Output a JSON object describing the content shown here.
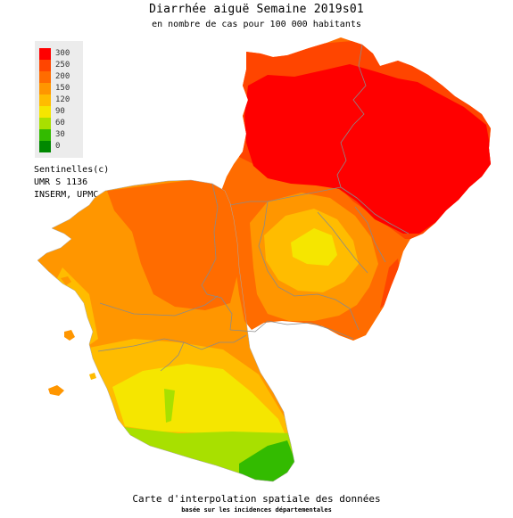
{
  "title": "Diarrhée aiguë Semaine 2019s01",
  "subtitle": "en nombre de cas pour 100 000 habitants",
  "legend": {
    "levels": [
      {
        "label": "300",
        "color": "#ff0000"
      },
      {
        "label": "250",
        "color": "#ff4500"
      },
      {
        "label": "200",
        "color": "#ff6c00"
      },
      {
        "label": "150",
        "color": "#ff9600"
      },
      {
        "label": "120",
        "color": "#ffbc00"
      },
      {
        "label": "90",
        "color": "#f5e600"
      },
      {
        "label": "60",
        "color": "#a8e000"
      },
      {
        "label": "30",
        "color": "#33bb00"
      },
      {
        "label": "0",
        "color": "#008800"
      }
    ]
  },
  "credit": {
    "line1": "Sentinelles(c)",
    "line2": "UMR S 1136",
    "line3": "INSERM, UPMC"
  },
  "footer": {
    "line1": "Carte d'interpolation spatiale des données",
    "line2": "basée sur les incidences départementales"
  }
}
